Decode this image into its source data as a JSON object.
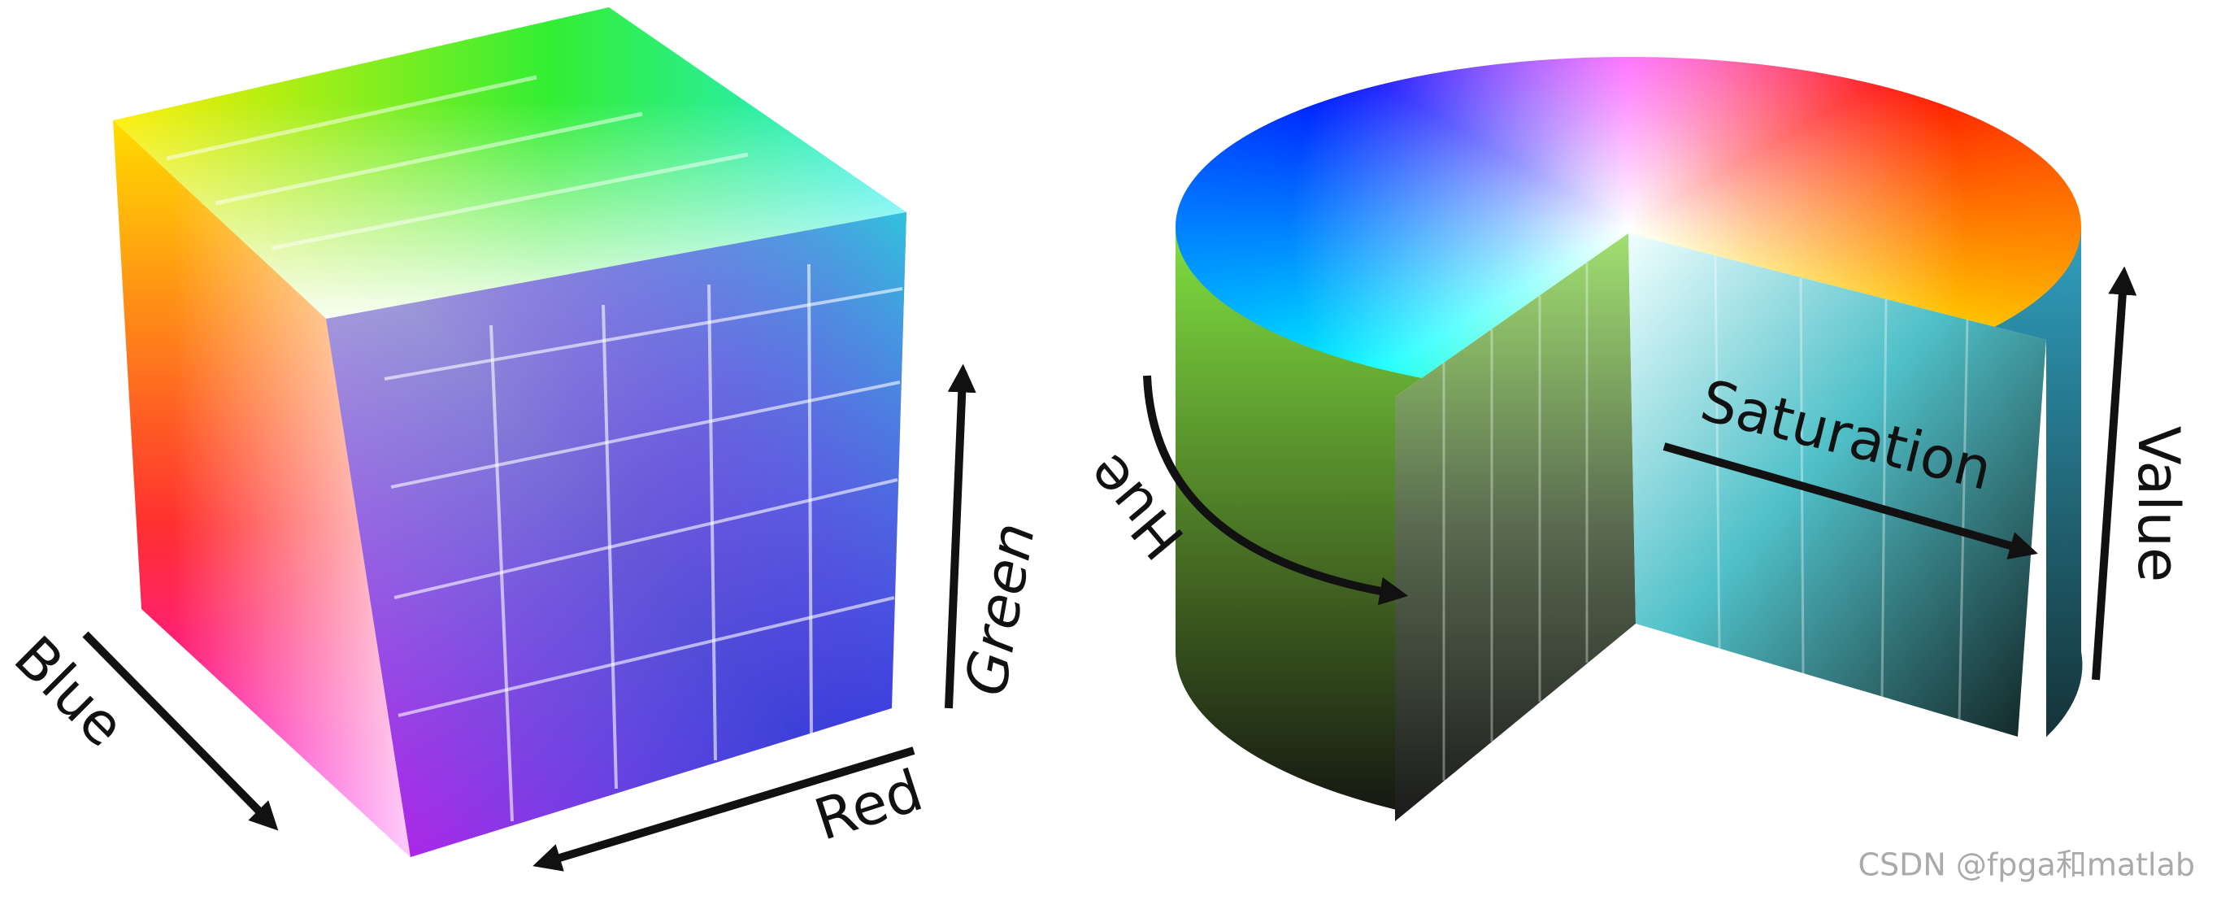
{
  "cube": {
    "labels": {
      "blue": "Blue",
      "red": "Red",
      "green": "Green"
    }
  },
  "cylinder": {
    "labels": {
      "hue": "Hue",
      "saturation": "Saturation",
      "value": "Value"
    }
  },
  "watermark": "CSDN @fpga和matlab"
}
